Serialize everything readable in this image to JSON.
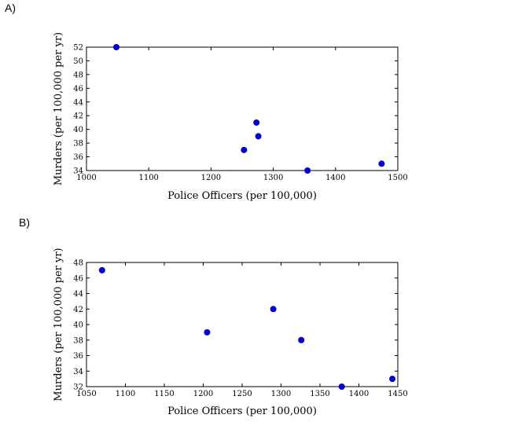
{
  "panels": {
    "a": {
      "label": "A)"
    },
    "b": {
      "label": "B)"
    }
  },
  "colors": {
    "point": "#0000cc",
    "axis": "#000000",
    "background": "#ffffff"
  },
  "chart_data": [
    {
      "type": "scatter",
      "panel": "A)",
      "xlabel": "Police Officers (per 100,000)",
      "ylabel": "Murders (per 100,000 per yr)",
      "xlim": [
        1000,
        1500
      ],
      "ylim": [
        34,
        52
      ],
      "xticks": [
        1000,
        1100,
        1200,
        1300,
        1400,
        1500
      ],
      "yticks": [
        34,
        36,
        38,
        40,
        42,
        44,
        46,
        48,
        50,
        52
      ],
      "grid": false,
      "points": [
        {
          "x": 1048,
          "y": 52
        },
        {
          "x": 1253,
          "y": 37
        },
        {
          "x": 1273,
          "y": 41
        },
        {
          "x": 1276,
          "y": 39
        },
        {
          "x": 1355,
          "y": 34
        },
        {
          "x": 1474,
          "y": 35
        }
      ]
    },
    {
      "type": "scatter",
      "panel": "B)",
      "xlabel": "Police Officers (per 100,000)",
      "ylabel": "Murders (per 100,000 per yr)",
      "xlim": [
        1050,
        1450
      ],
      "ylim": [
        32,
        48
      ],
      "xticks": [
        1050,
        1100,
        1150,
        1200,
        1250,
        1300,
        1350,
        1400,
        1450
      ],
      "yticks": [
        32,
        34,
        36,
        38,
        40,
        42,
        44,
        46,
        48
      ],
      "grid": false,
      "points": [
        {
          "x": 1070,
          "y": 47
        },
        {
          "x": 1205,
          "y": 39
        },
        {
          "x": 1290,
          "y": 42
        },
        {
          "x": 1326,
          "y": 38
        },
        {
          "x": 1378,
          "y": 32
        },
        {
          "x": 1443,
          "y": 33
        }
      ]
    }
  ]
}
